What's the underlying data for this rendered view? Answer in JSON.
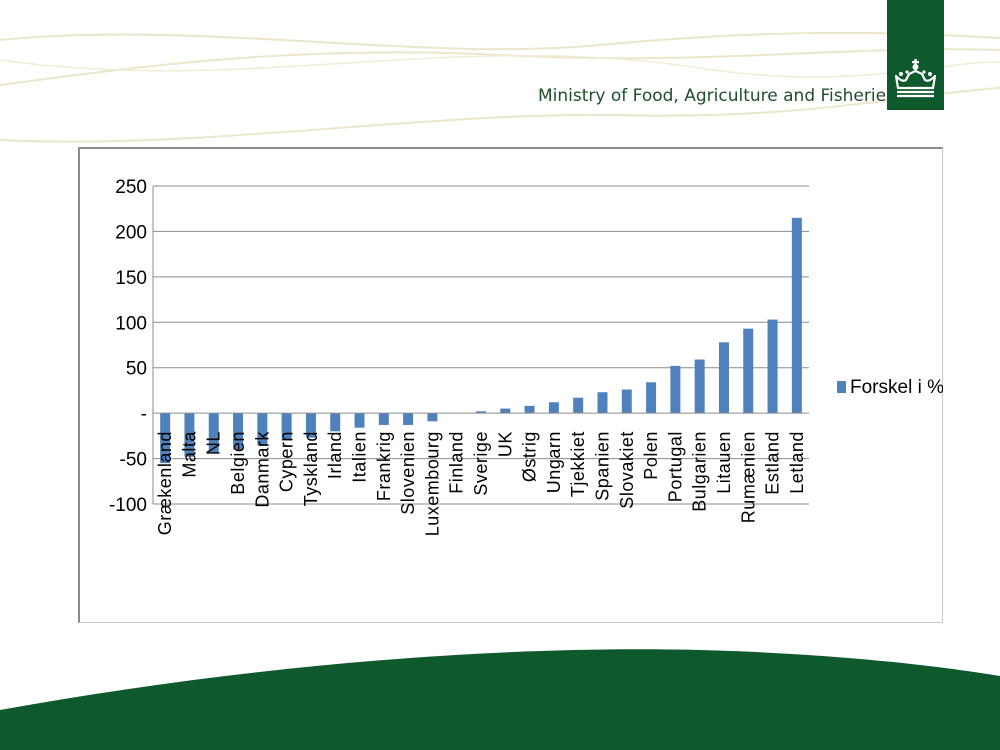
{
  "header": {
    "ministry_name": "Ministry of Food, Agriculture and Fisheries",
    "logo_icon": "royal-crown-icon"
  },
  "colors": {
    "brand_green": "#0f5a2c",
    "bar": "#4f81bd",
    "wave": "#ece6cc"
  },
  "chart_data": {
    "type": "bar",
    "title": "",
    "xlabel": "",
    "ylabel": "",
    "ylim": [
      -100,
      250
    ],
    "yticks": [
      {
        "value": 250,
        "label": "250"
      },
      {
        "value": 200,
        "label": "200"
      },
      {
        "value": 150,
        "label": "150"
      },
      {
        "value": 100,
        "label": "100"
      },
      {
        "value": 50,
        "label": "50"
      },
      {
        "value": 0,
        "label": "-"
      },
      {
        "value": -50,
        "label": "-50"
      },
      {
        "value": -100,
        "label": "-100"
      }
    ],
    "grid": true,
    "legend_position": "right",
    "categories": [
      "Grækenland",
      "Malta",
      "NL",
      "Belgien",
      "Danmark",
      "Cypern",
      "Tyskland",
      "Irland",
      "Italien",
      "Frankrig",
      "Slovenien",
      "Luxembourg",
      "Finland",
      "Sverige",
      "UK",
      "Østrig",
      "Ungarn",
      "Tjekkiet",
      "Spanien",
      "Slovakiet",
      "Polen",
      "Portugal",
      "Bulgarien",
      "Litauen",
      "Rumænien",
      "Estland",
      "Letland"
    ],
    "series": [
      {
        "name": "Forskel i %",
        "values": [
          -55,
          -48,
          -43,
          -40,
          -35,
          -30,
          -27,
          -20,
          -16,
          -13,
          -13,
          -9,
          0,
          2,
          5,
          8,
          12,
          17,
          23,
          26,
          34,
          52,
          59,
          78,
          93,
          103,
          215
        ]
      }
    ]
  }
}
